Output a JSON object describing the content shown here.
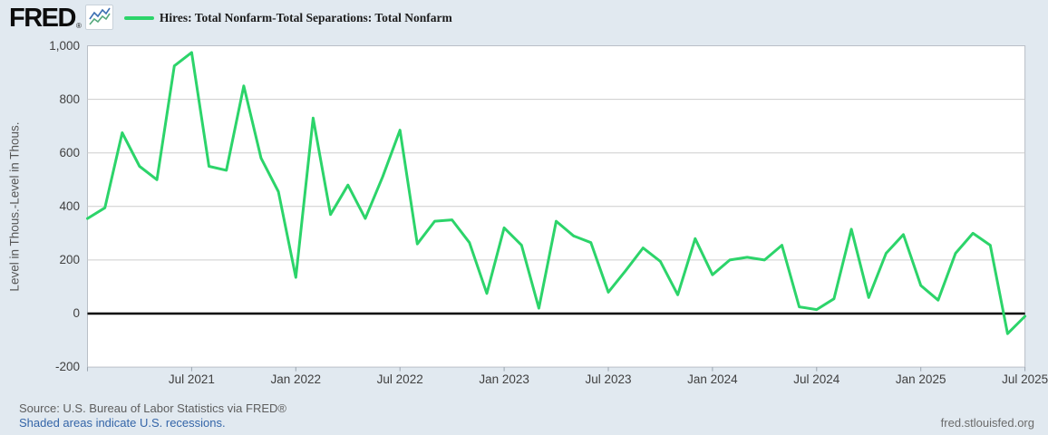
{
  "header": {
    "logo_text": "FRED",
    "logo_registered": "®",
    "legend_label": "Hires: Total Nonfarm-Total Separations: Total Nonfarm"
  },
  "chart_data": {
    "type": "line",
    "title": "Hires: Total Nonfarm-Total Separations: Total Nonfarm",
    "ylabel": "Level in Thous.-Level in Thous.",
    "ylim": [
      -200,
      1000
    ],
    "grid": "horizontal",
    "zero_line": true,
    "legend_position": "top-left",
    "line_color": "#2cd46a",
    "plot_bg_color": "#ffffff",
    "page_bg_color": "#e1e9f0",
    "grid_color": "#cdcdcd",
    "border_color": "#b9bfc7",
    "zero_line_color": "#000000",
    "x": [
      "Jan 2021",
      "Feb 2021",
      "Mar 2021",
      "Apr 2021",
      "May 2021",
      "Jun 2021",
      "Jul 2021",
      "Aug 2021",
      "Sep 2021",
      "Oct 2021",
      "Nov 2021",
      "Dec 2021",
      "Jan 2022",
      "Feb 2022",
      "Mar 2022",
      "Apr 2022",
      "May 2022",
      "Jun 2022",
      "Jul 2022",
      "Aug 2022",
      "Sep 2022",
      "Oct 2022",
      "Nov 2022",
      "Dec 2022",
      "Jan 2023",
      "Feb 2023",
      "Mar 2023",
      "Apr 2023",
      "May 2023",
      "Jun 2023",
      "Jul 2023",
      "Aug 2023",
      "Sep 2023",
      "Oct 2023",
      "Nov 2023",
      "Dec 2023",
      "Jan 2024",
      "Feb 2024",
      "Mar 2024",
      "Apr 2024",
      "May 2024",
      "Jun 2024",
      "Jul 2024",
      "Aug 2024",
      "Sep 2024",
      "Oct 2024",
      "Nov 2024",
      "Dec 2024",
      "Jan 2025",
      "Feb 2025",
      "Mar 2025",
      "Apr 2025",
      "May 2025",
      "Jun 2025",
      "Jul 2025"
    ],
    "values": [
      355,
      395,
      675,
      550,
      500,
      925,
      975,
      550,
      535,
      850,
      580,
      455,
      135,
      730,
      370,
      480,
      355,
      510,
      685,
      260,
      345,
      350,
      265,
      75,
      320,
      255,
      20,
      345,
      290,
      265,
      80,
      160,
      245,
      195,
      70,
      280,
      145,
      200,
      210,
      200,
      255,
      25,
      15,
      55,
      315,
      60,
      225,
      295,
      105,
      50,
      225,
      300,
      255,
      -75,
      -10
    ],
    "yticks": [
      {
        "label": "1,000",
        "value": 1000
      },
      {
        "label": "800",
        "value": 800
      },
      {
        "label": "600",
        "value": 600
      },
      {
        "label": "400",
        "value": 400
      },
      {
        "label": "200",
        "value": 200
      },
      {
        "label": "0",
        "value": 0
      },
      {
        "label": "-200",
        "value": -200
      }
    ],
    "xticks": [
      {
        "label": "Jul 2021",
        "index": 6
      },
      {
        "label": "Jan 2022",
        "index": 12
      },
      {
        "label": "Jul 2022",
        "index": 18
      },
      {
        "label": "Jan 2023",
        "index": 24
      },
      {
        "label": "Jul 2023",
        "index": 30
      },
      {
        "label": "Jan 2024",
        "index": 36
      },
      {
        "label": "Jul 2024",
        "index": 42
      },
      {
        "label": "Jan 2025",
        "index": 48
      },
      {
        "label": "Jul 2025",
        "index": 54
      }
    ]
  },
  "footer": {
    "source": "Source: U.S. Bureau of Labor Statistics via FRED®",
    "recessions_note": "Shaded areas indicate U.S. recessions.",
    "site": "fred.stlouisfed.org"
  }
}
